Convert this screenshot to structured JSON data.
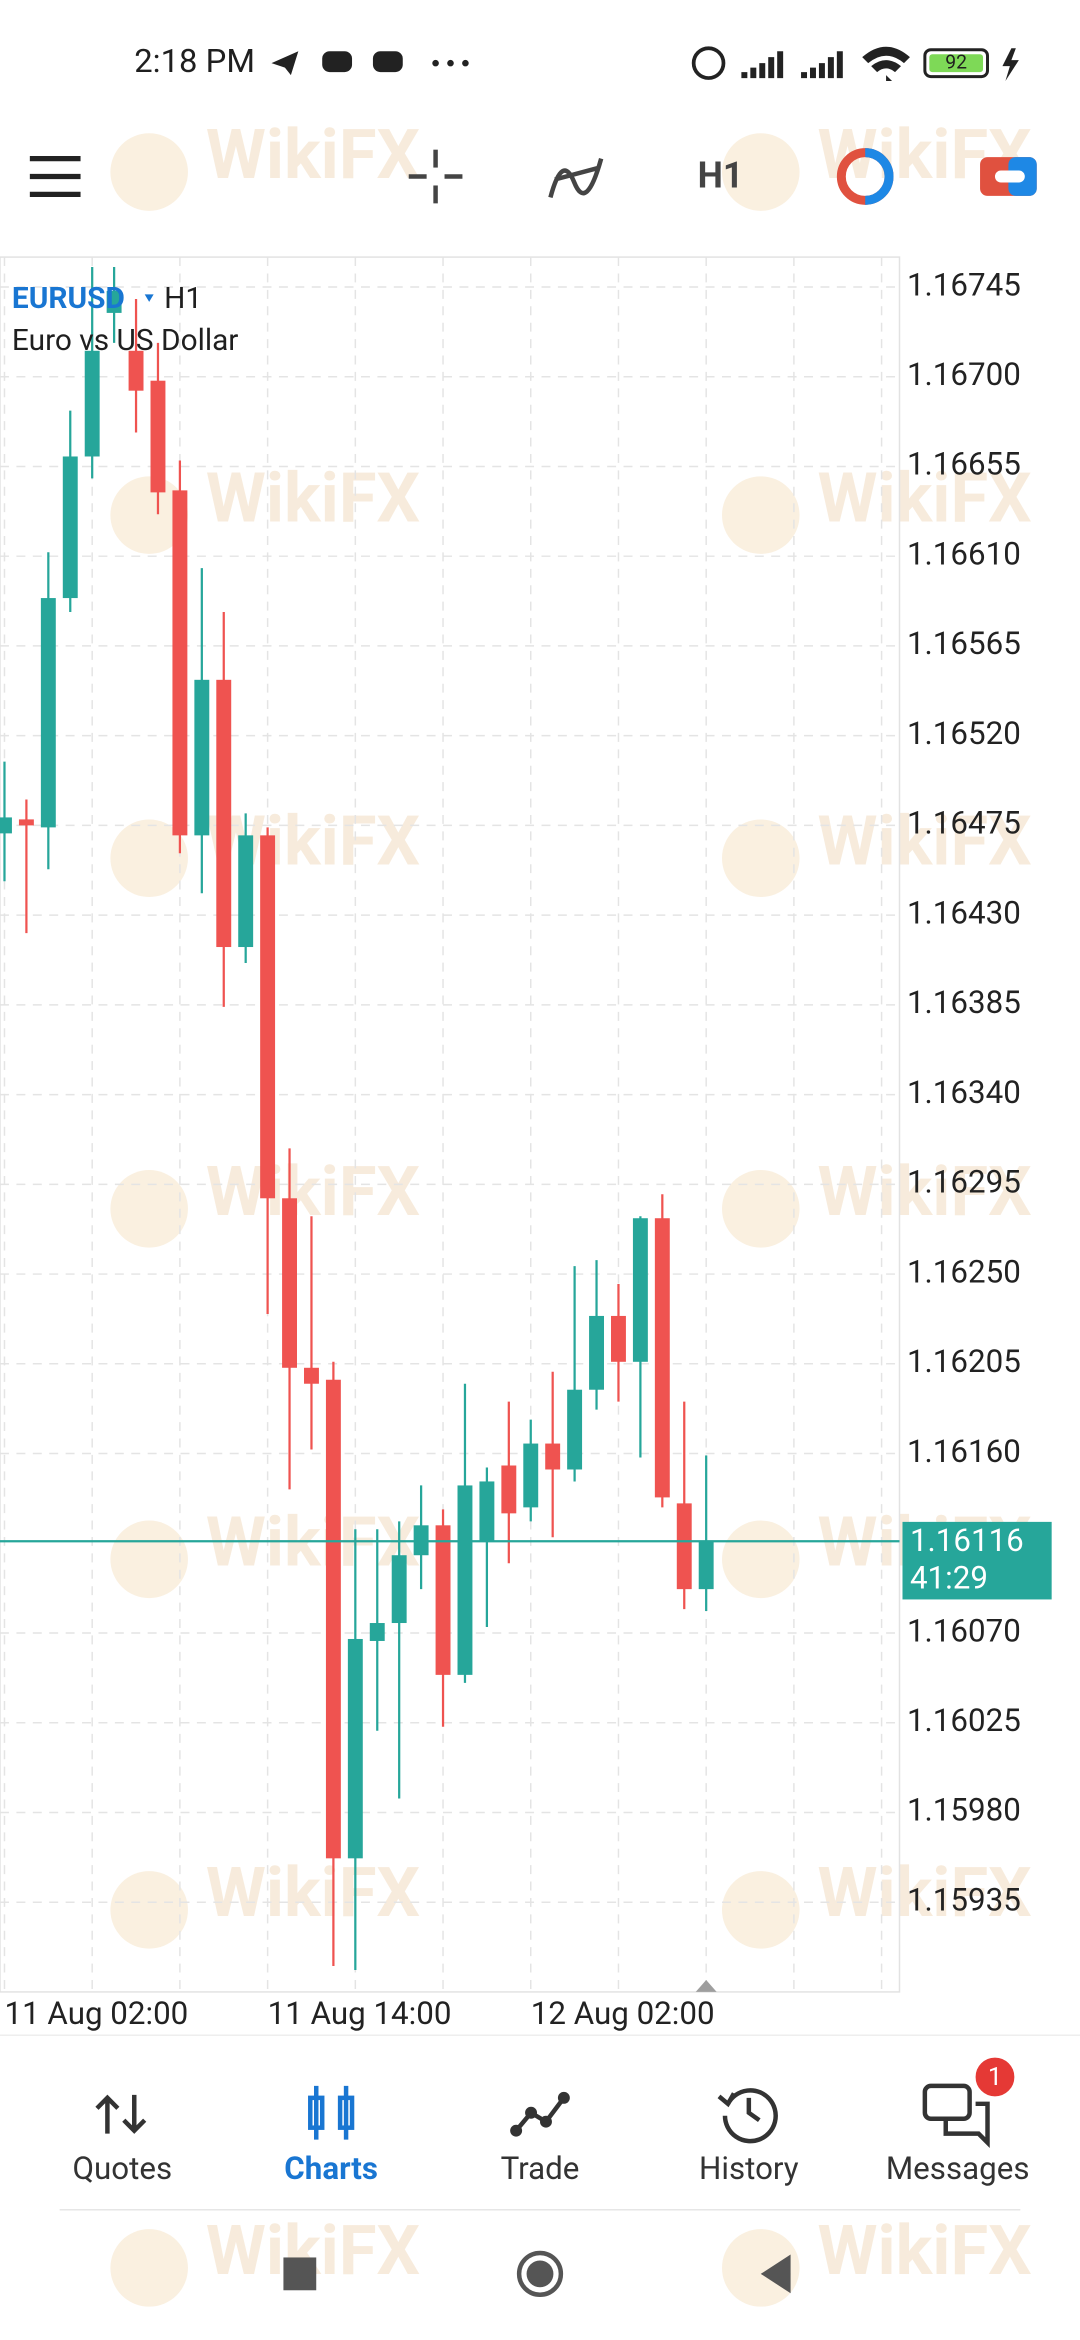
{
  "status_bar": {
    "time": "2:18 PM",
    "battery": 92
  },
  "toolbar": {
    "timeframe": "H1"
  },
  "chart_data": {
    "type": "candlestick",
    "symbol": "EURUSD",
    "timeframe": "H1",
    "description": "Euro vs US Dollar",
    "categories": [
      "11 Aug 02:00",
      null,
      null,
      null,
      null,
      null,
      null,
      null,
      null,
      null,
      null,
      null,
      "11 Aug 14:00",
      null,
      null,
      null,
      null,
      null,
      null,
      null,
      null,
      null,
      null,
      null,
      "12 Aug 02:00",
      null,
      null,
      null,
      null,
      null,
      null,
      null,
      null
    ],
    "open": [
      1.16471,
      1.16478,
      1.16474,
      1.16589,
      1.1666,
      1.16732,
      1.16713,
      1.16698,
      1.16643,
      1.1647,
      1.16548,
      1.16414,
      1.1647,
      1.16288,
      1.16203,
      1.16197,
      1.15957,
      1.16066,
      1.16075,
      1.16109,
      1.16124,
      1.16049,
      1.16116,
      1.16154,
      1.16133,
      1.16165,
      1.16152,
      1.16192,
      1.16229,
      1.16206,
      1.16278,
      1.16135,
      1.16092
    ],
    "high": [
      1.16507,
      1.16488,
      1.16612,
      1.16683,
      1.16755,
      1.16755,
      1.16739,
      1.16717,
      1.16658,
      1.16604,
      1.16582,
      1.16481,
      1.16474,
      1.16313,
      1.16279,
      1.16206,
      1.16122,
      1.16122,
      1.16126,
      1.16144,
      1.16132,
      1.16195,
      1.16153,
      1.16186,
      1.16177,
      1.16201,
      1.16254,
      1.16257,
      1.16245,
      1.16279,
      1.1629,
      1.16186,
      1.16159
    ],
    "low": [
      1.16447,
      1.16421,
      1.16453,
      1.16582,
      1.16649,
      1.16717,
      1.16672,
      1.16631,
      1.16461,
      1.16441,
      1.16384,
      1.16406,
      1.1623,
      1.16142,
      1.16162,
      1.15903,
      1.15901,
      1.16021,
      1.15987,
      1.16092,
      1.16023,
      1.16045,
      1.16073,
      1.16105,
      1.16126,
      1.16118,
      1.16146,
      1.16182,
      1.16186,
      1.16158,
      1.16133,
      1.16082,
      1.16081
    ],
    "close": [
      1.16479,
      1.16475,
      1.16589,
      1.1666,
      1.16713,
      1.16743,
      1.16693,
      1.16642,
      1.1647,
      1.16548,
      1.16414,
      1.1647,
      1.16288,
      1.16203,
      1.16195,
      1.15957,
      1.16067,
      1.16075,
      1.16109,
      1.16124,
      1.16049,
      1.16144,
      1.16146,
      1.1613,
      1.16165,
      1.16152,
      1.16192,
      1.16229,
      1.16206,
      1.16278,
      1.16138,
      1.16092,
      1.16116
    ],
    "up_color": "#26a69a",
    "down_color": "#ef5350",
    "ylim": [
      1.1589,
      1.1676
    ],
    "yticks": [
      1.16745,
      {
        "value": 1.167,
        "label": "1.16700"
      },
      1.16655,
      {
        "value": 1.1661,
        "label": "1.16610"
      },
      1.16565,
      {
        "value": 1.1652,
        "label": "1.16520"
      },
      1.16475,
      {
        "value": 1.1643,
        "label": "1.16430"
      },
      1.16385,
      {
        "value": 1.1634,
        "label": "1.16340"
      },
      1.16295,
      {
        "value": 1.1625,
        "label": "1.16250"
      },
      1.16205,
      {
        "value": 1.1616,
        "label": "1.16160"
      },
      {
        "value": 1.1607,
        "label": "1.16070"
      },
      1.16025,
      {
        "value": 1.1598,
        "label": "1.15980"
      },
      1.15935
    ],
    "grid": true,
    "current_price": 1.16116,
    "countdown": "41:29"
  },
  "tab_bar": {
    "tabs": [
      "Quotes",
      "Charts",
      "Trade",
      "History",
      "Messages"
    ],
    "active": 1,
    "badge": 1
  },
  "watermark": "WikiFX"
}
